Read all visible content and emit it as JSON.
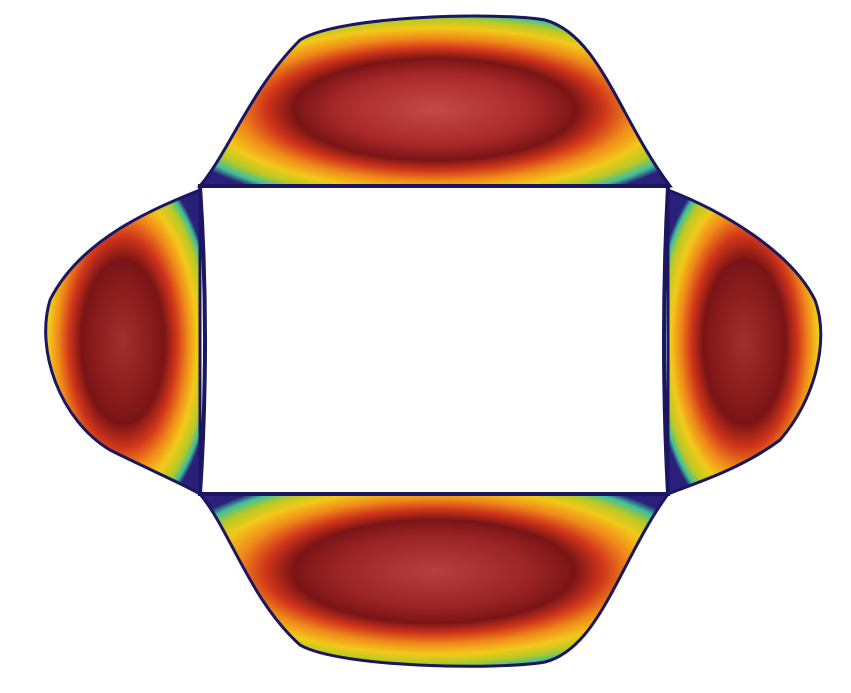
{
  "figure": {
    "background": "#ffffff",
    "outline_color": "#1a1660",
    "colormap": [
      "#2a1f7a",
      "#2f8fa6",
      "#3fbf9a",
      "#b9c925",
      "#f2c91a",
      "#f08a1a",
      "#d8391c",
      "#7a1416",
      "#c04848"
    ],
    "lobes": [
      {
        "name": "top"
      },
      {
        "name": "bottom"
      },
      {
        "name": "left"
      },
      {
        "name": "right"
      }
    ]
  }
}
